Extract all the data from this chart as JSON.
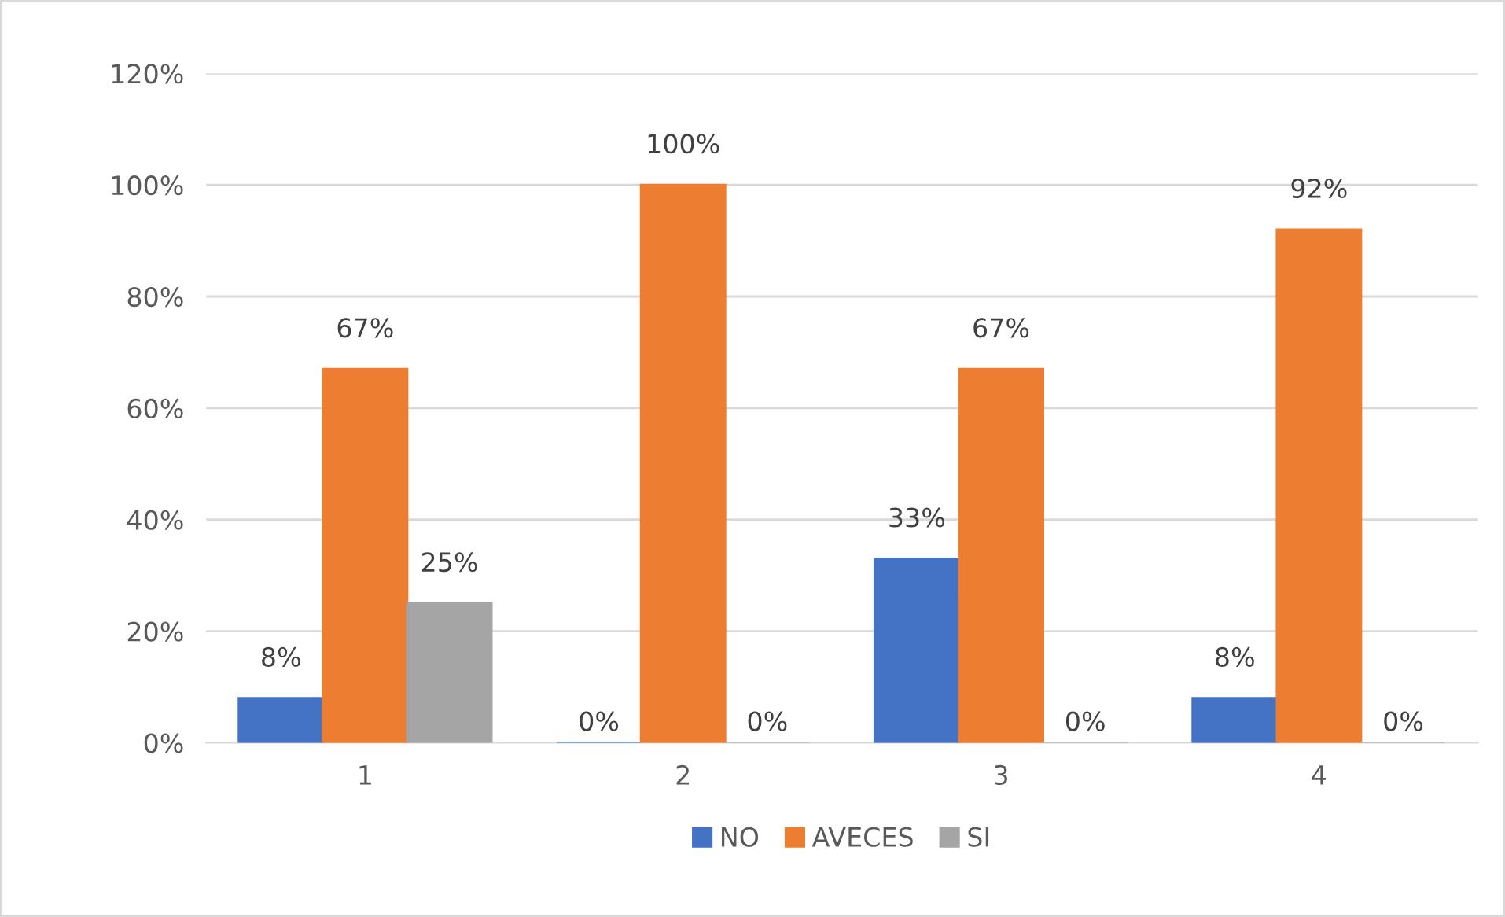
{
  "chart_data": {
    "type": "bar",
    "categories": [
      "1",
      "2",
      "3",
      "4"
    ],
    "series": [
      {
        "name": "NO",
        "color": "#4472c4",
        "values": [
          8,
          0,
          33,
          8
        ],
        "value_labels": [
          "8%",
          "0%",
          "33%",
          "8%"
        ]
      },
      {
        "name": "AVECES",
        "color": "#ed7d31",
        "values": [
          67,
          100,
          67,
          92
        ],
        "value_labels": [
          "67%",
          "100%",
          "67%",
          "92%"
        ]
      },
      {
        "name": "SI",
        "color": "#a5a5a5",
        "values": [
          25,
          0,
          0,
          0
        ],
        "value_labels": [
          "25%",
          "0%",
          "0%",
          "0%"
        ]
      }
    ],
    "ylim": [
      0,
      120
    ],
    "yticks": [
      {
        "value": 0,
        "label": "0%"
      },
      {
        "value": 20,
        "label": "20%"
      },
      {
        "value": 40,
        "label": "40%"
      },
      {
        "value": 60,
        "label": "60%"
      },
      {
        "value": 80,
        "label": "80%"
      },
      {
        "value": 100,
        "label": "100%"
      },
      {
        "value": 120,
        "label": "120%"
      }
    ],
    "grid": "y",
    "legend": "bottom"
  }
}
